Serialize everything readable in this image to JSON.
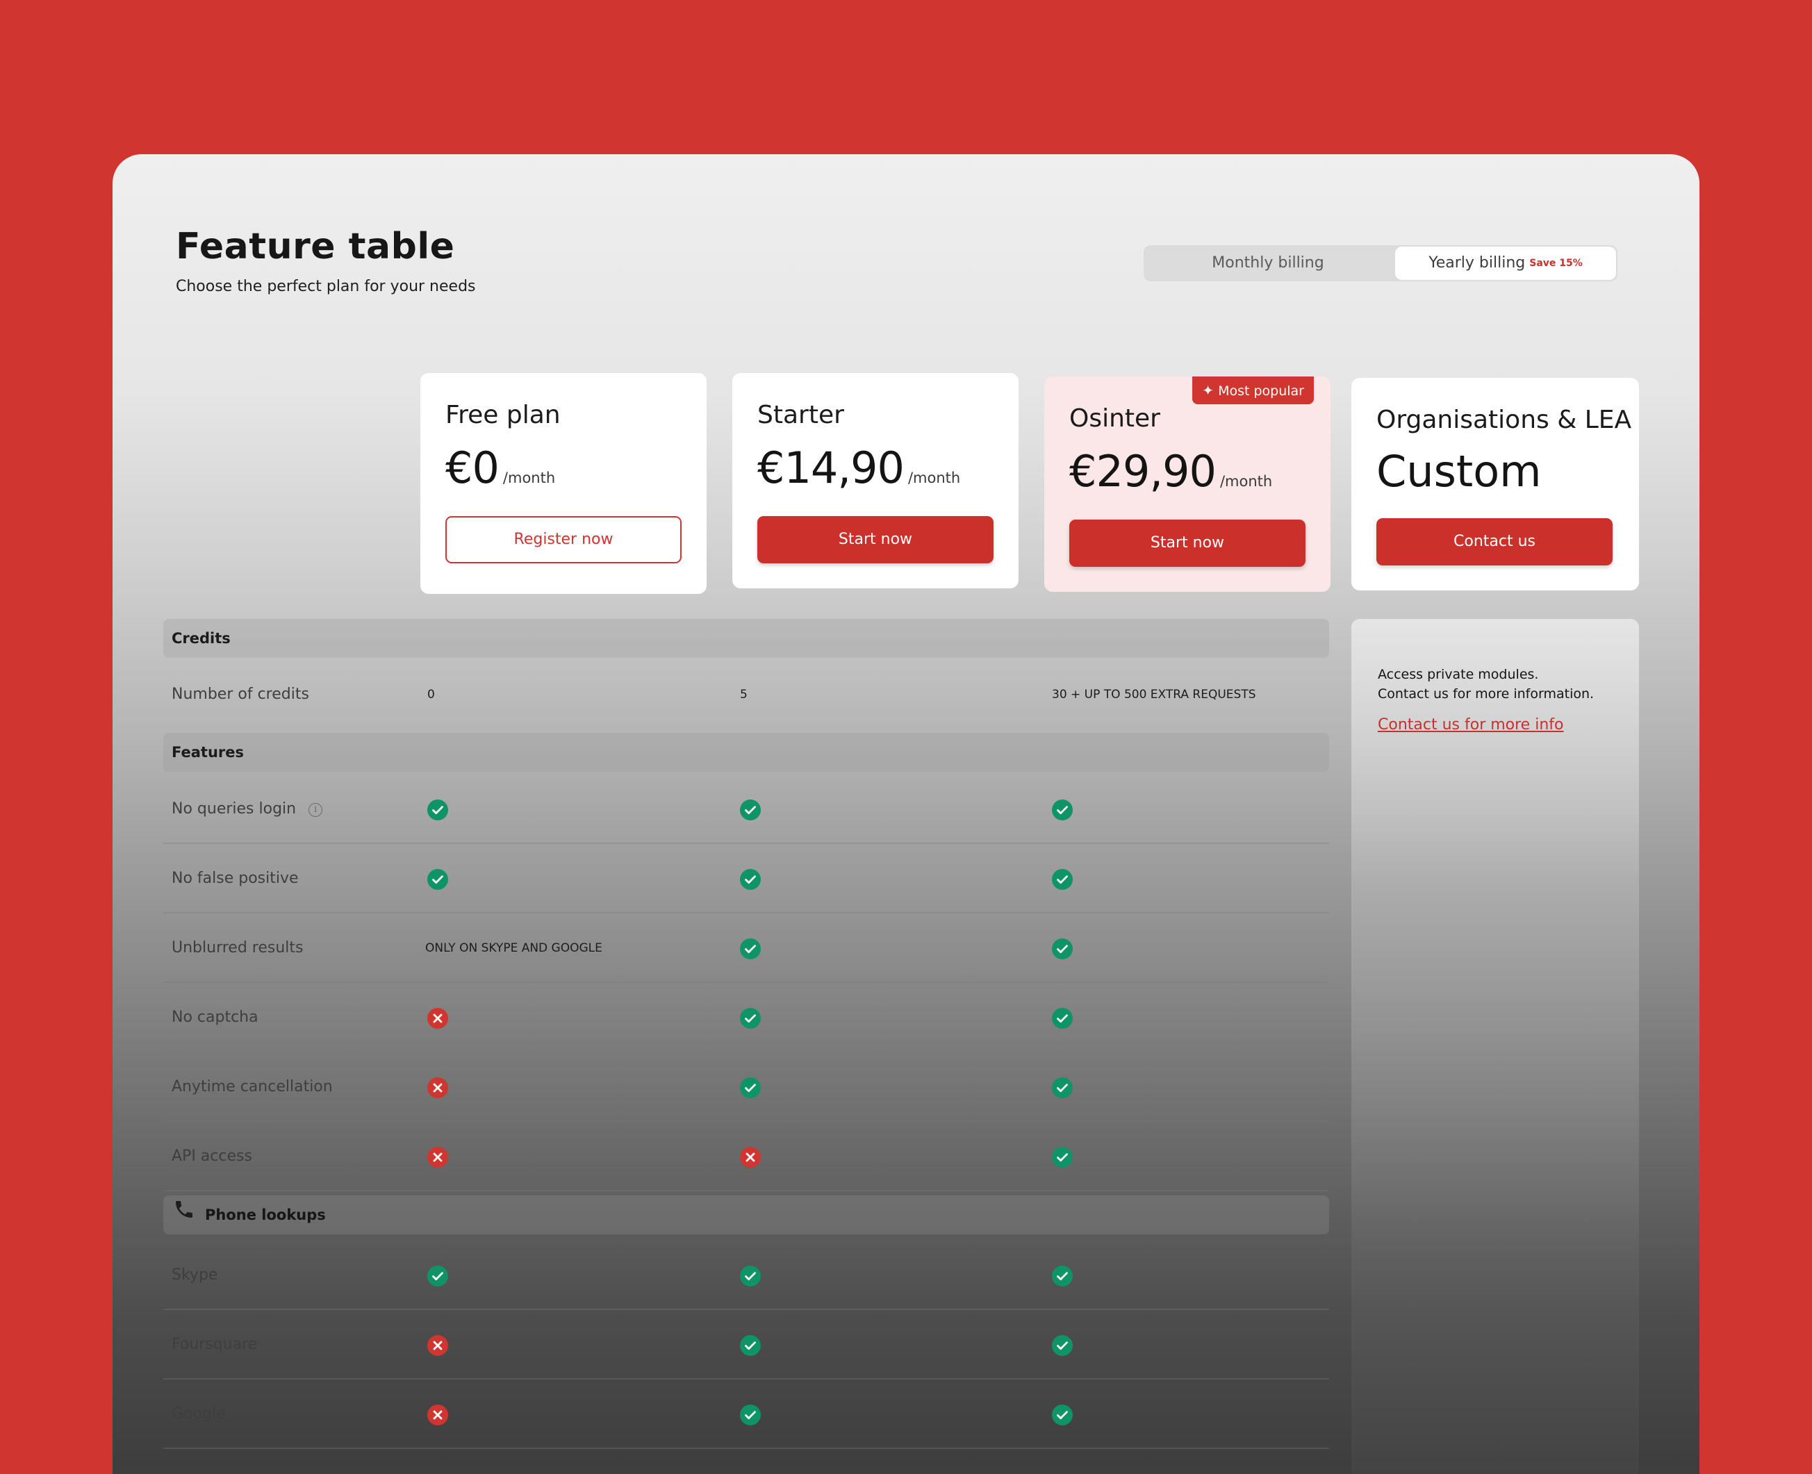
{
  "header": {
    "title": "Feature table",
    "subtitle": "Choose the perfect plan for your needs"
  },
  "billing": {
    "monthly_label": "Monthly billing",
    "yearly_label": "Yearly billing",
    "save_badge": "Save 15%",
    "selected": "yearly"
  },
  "plans": [
    {
      "name": "Free plan",
      "price": "€0",
      "period": "/month",
      "button": "Register now"
    },
    {
      "name": "Starter",
      "price": "€14,90",
      "period": "/month",
      "button": "Start now"
    },
    {
      "name": "Osinter",
      "price": "€29,90",
      "period": "/month",
      "button": "Start now",
      "badge": "Most popular"
    },
    {
      "name": "Organisations & LEA",
      "price": "Custom",
      "button": "Contact us"
    }
  ],
  "sections": {
    "credits": "Credits",
    "features": "Features",
    "phone_lookups": "Phone lookups"
  },
  "credits_row": {
    "label": "Number of credits",
    "values": [
      "0",
      "5",
      "30 + UP TO 500 EXTRA REQUESTS"
    ]
  },
  "feature_rows": [
    {
      "label": "No queries login",
      "values": [
        "check",
        "check",
        "check"
      ],
      "info": "i"
    },
    {
      "label": "No false positive",
      "values": [
        "check",
        "check",
        "check"
      ]
    },
    {
      "label": "Unblurred results",
      "values": [
        "ONLY ON SKYPE AND GOOGLE",
        "check",
        "check"
      ]
    },
    {
      "label": "No captcha",
      "values": [
        "cross",
        "check",
        "check"
      ]
    },
    {
      "label": "Anytime cancellation",
      "values": [
        "cross",
        "check",
        "check"
      ]
    },
    {
      "label": "API access",
      "values": [
        "cross",
        "cross",
        "check"
      ]
    }
  ],
  "phone_rows": [
    {
      "label": "Skype",
      "values": [
        "check",
        "check",
        "check"
      ]
    },
    {
      "label": "Foursquare",
      "values": [
        "cross",
        "check",
        "check"
      ]
    },
    {
      "label": "Google",
      "values": [
        "cross",
        "check",
        "check"
      ]
    }
  ],
  "side_panel": {
    "line1": "Access private modules.",
    "line2": "Contact us for more information.",
    "link": "Contact us for more info"
  },
  "colors": {
    "brand_red": "#d0352f",
    "check_green": "#0e9466",
    "cross_red": "#d0352f"
  }
}
